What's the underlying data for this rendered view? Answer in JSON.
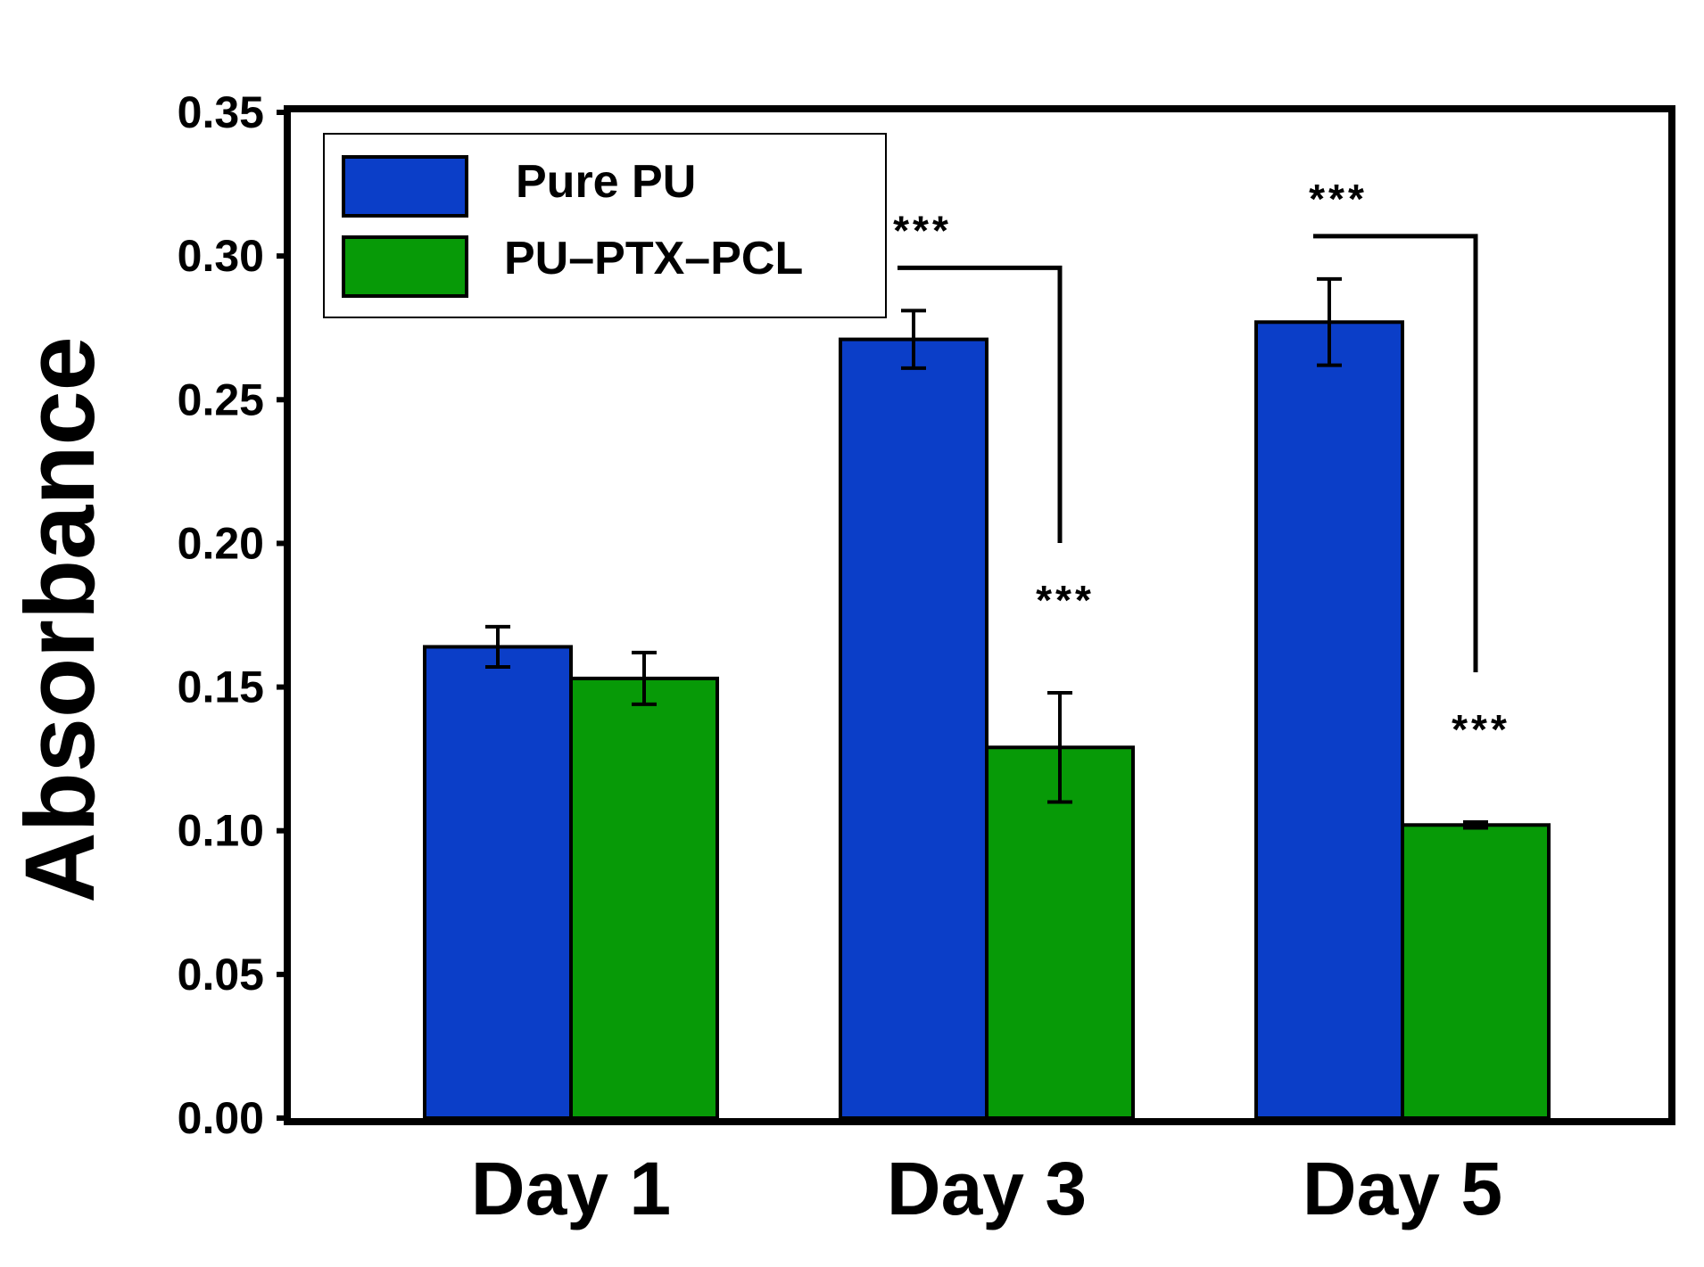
{
  "chart_data": {
    "type": "bar",
    "title": "",
    "xlabel": "",
    "ylabel": "Absorbance",
    "ylim": [
      0,
      0.35
    ],
    "yticks": [
      "0.00",
      "0.05",
      "0.10",
      "0.15",
      "0.20",
      "0.25",
      "0.30",
      "0.35"
    ],
    "categories": [
      "Day 1",
      "Day 3",
      "Day 5"
    ],
    "series": [
      {
        "name": "Pure PU",
        "color": "#0b3ec8",
        "values": [
          0.164,
          0.271,
          0.277
        ],
        "errors": [
          0.007,
          0.01,
          0.015
        ]
      },
      {
        "name": "PU–PTX–PCL",
        "color": "#079a07",
        "values": [
          0.153,
          0.129,
          0.102
        ],
        "errors": [
          0.009,
          0.019,
          0.001
        ]
      }
    ],
    "legend_position": "top-left",
    "grid": false,
    "annotations": [
      {
        "category": "Day 3",
        "series": "PU–PTX–PCL",
        "text": "***"
      },
      {
        "category": "Day 5",
        "series": "PU–PTX–PCL",
        "text": "***"
      }
    ],
    "brackets": [
      {
        "category": "Day 3",
        "from": "Pure PU",
        "to": "PU–PTX–PCL",
        "text": "***"
      },
      {
        "category": "Day 5",
        "from": "Pure PU",
        "to": "PU–PTX–PCL",
        "text": "***"
      }
    ]
  }
}
